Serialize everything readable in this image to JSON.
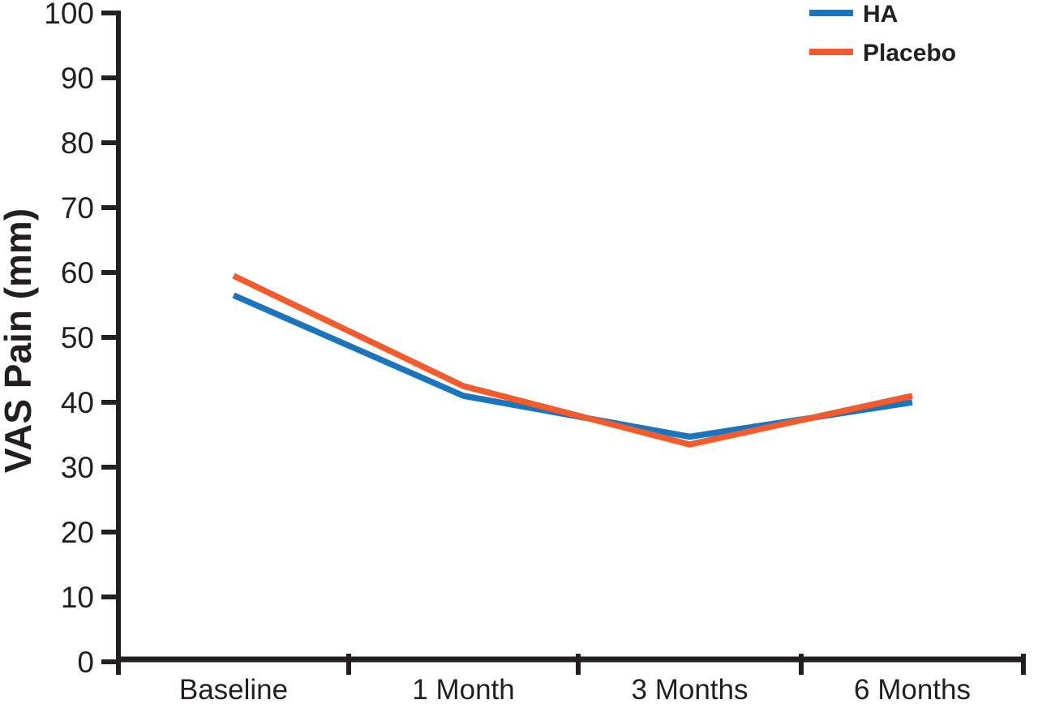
{
  "figure": {
    "background": "#ffffff",
    "text_color": "#231f20",
    "axis_color": "#231f20"
  },
  "legend": {
    "position": "top-right",
    "items": [
      {
        "label": "HA",
        "color": "#1b75bc"
      },
      {
        "label": "Placebo",
        "color": "#f15b2e"
      }
    ]
  },
  "chart_data": {
    "type": "line",
    "title": "",
    "xlabel": "",
    "ylabel": "VAS Pain (mm)",
    "categories": [
      "Baseline",
      "1 Month",
      "3 Months",
      "6 Months"
    ],
    "series": [
      {
        "name": "HA",
        "color": "#1b75bc",
        "values": [
          56.5,
          41.0,
          34.7,
          40.0
        ]
      },
      {
        "name": "Placebo",
        "color": "#f15b2e",
        "values": [
          59.5,
          42.5,
          33.5,
          41.0
        ]
      }
    ],
    "ylim": [
      0,
      100
    ],
    "ytick_step": 10,
    "yticks": [
      0,
      10,
      20,
      30,
      40,
      50,
      60,
      70,
      80,
      90,
      100
    ],
    "grid": false,
    "legend_position": "top-right"
  }
}
